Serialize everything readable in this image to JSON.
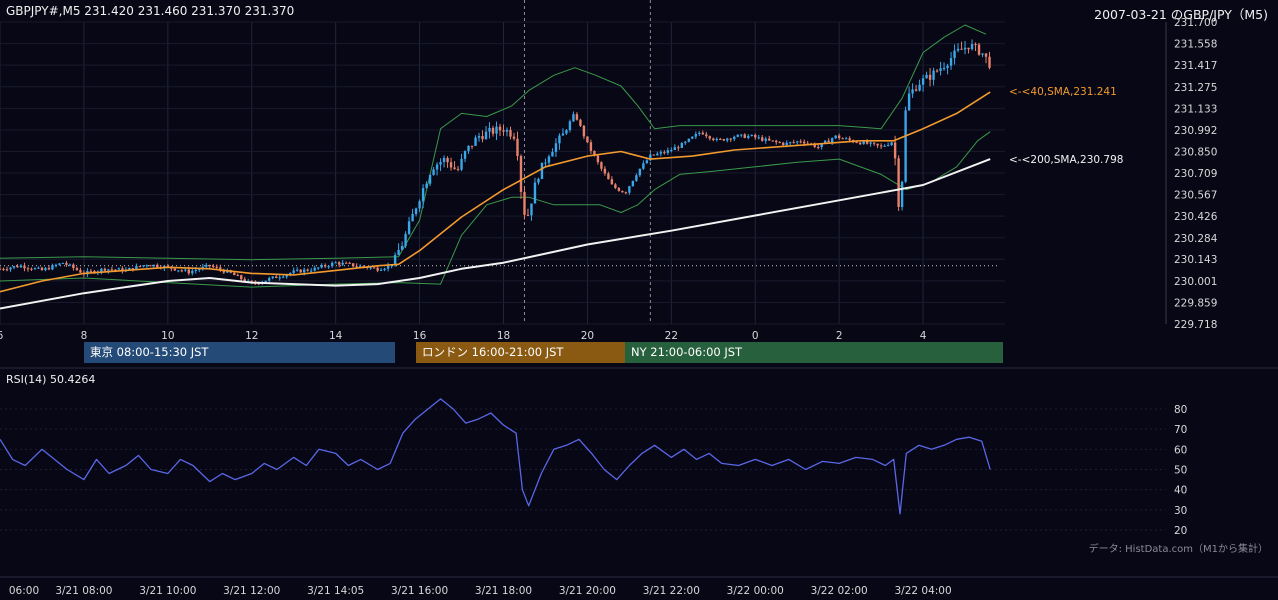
{
  "header": {
    "info": "GBPJPY#,M5 231.420 231.460 231.370 231.370",
    "title": "2007-03-21 のGBP/JPY（M5)"
  },
  "sessions": [
    {
      "label": "東京 08:00-15:30 JST",
      "color": "#244a78"
    },
    {
      "label": "ロンドン 16:00-21:00 JST",
      "color": "#8a5a12"
    },
    {
      "label": "NY 21:00-06:00 JST",
      "color": "#27603c"
    }
  ],
  "sma_labels": {
    "sma40": "<-<40,SMA,231.241",
    "sma200": "<-<200,SMA,230.798"
  },
  "rsi_label": "RSI(14) 50.4264",
  "source_note": "データ: HistData.com（M1から集計）",
  "colors": {
    "background": "#070716",
    "up": "#3aa7e8",
    "down": "#e8826a",
    "sma40": "#f39a2e",
    "sma200": "#f2f2f2",
    "bollinger": "#3b9a4a",
    "rsi": "#5a67e6"
  },
  "chart_data": [
    {
      "type": "candlestick",
      "title": "GBP/JPY M5",
      "ylim": [
        229.718,
        231.7
      ],
      "y_ticks": [
        "231.700",
        "231.558",
        "231.417",
        "231.275",
        "231.133",
        "230.992",
        "230.850",
        "230.709",
        "230.567",
        "230.426",
        "230.284",
        "230.143",
        "230.001",
        "229.859",
        "229.718"
      ],
      "x_ticks": [
        "6",
        "8",
        "10",
        "12",
        "14",
        "16",
        "18",
        "20",
        "22",
        "0",
        "2",
        "4"
      ],
      "series": [
        {
          "name": "40,SMA",
          "last": 231.241
        },
        {
          "name": "200,SMA",
          "last": 230.798
        }
      ],
      "price_path": [
        [
          6.0,
          230.08
        ],
        [
          6.5,
          230.1
        ],
        [
          7.0,
          230.07
        ],
        [
          7.5,
          230.12
        ],
        [
          8.0,
          230.05
        ],
        [
          8.5,
          230.08
        ],
        [
          9.0,
          230.07
        ],
        [
          9.5,
          230.11
        ],
        [
          10.0,
          230.09
        ],
        [
          10.5,
          230.06
        ],
        [
          11.0,
          230.1
        ],
        [
          11.5,
          230.05
        ],
        [
          12.0,
          229.98
        ],
        [
          12.5,
          230.02
        ],
        [
          13.0,
          230.06
        ],
        [
          13.5,
          230.08
        ],
        [
          14.0,
          230.12
        ],
        [
          14.5,
          230.1
        ],
        [
          15.0,
          230.08
        ],
        [
          15.3,
          230.1
        ],
        [
          15.6,
          230.25
        ],
        [
          15.9,
          230.48
        ],
        [
          16.1,
          230.62
        ],
        [
          16.3,
          230.75
        ],
        [
          16.6,
          230.8
        ],
        [
          16.9,
          230.72
        ],
        [
          17.1,
          230.85
        ],
        [
          17.4,
          230.95
        ],
        [
          17.7,
          230.98
        ],
        [
          18.0,
          231.0
        ],
        [
          18.3,
          230.95
        ],
        [
          18.45,
          230.5
        ],
        [
          18.55,
          230.4
        ],
        [
          18.8,
          230.68
        ],
        [
          19.1,
          230.85
        ],
        [
          19.4,
          230.95
        ],
        [
          19.7,
          231.1
        ],
        [
          20.0,
          230.9
        ],
        [
          20.3,
          230.75
        ],
        [
          20.6,
          230.62
        ],
        [
          20.9,
          230.58
        ],
        [
          21.2,
          230.72
        ],
        [
          21.5,
          230.82
        ],
        [
          21.9,
          230.85
        ],
        [
          22.3,
          230.9
        ],
        [
          22.7,
          230.98
        ],
        [
          23.1,
          230.92
        ],
        [
          23.5,
          230.95
        ],
        [
          23.9,
          230.95
        ],
        [
          24.3,
          230.92
        ],
        [
          24.7,
          230.9
        ],
        [
          25.1,
          230.92
        ],
        [
          25.5,
          230.88
        ],
        [
          25.9,
          230.95
        ],
        [
          26.3,
          230.92
        ],
        [
          26.7,
          230.9
        ],
        [
          27.0,
          230.88
        ],
        [
          27.3,
          230.92
        ],
        [
          27.45,
          230.4
        ],
        [
          27.6,
          231.2
        ],
        [
          27.9,
          231.3
        ],
        [
          28.2,
          231.35
        ],
        [
          28.5,
          231.42
        ],
        [
          28.8,
          231.5
        ],
        [
          29.1,
          231.55
        ],
        [
          29.4,
          231.5
        ],
        [
          29.6,
          231.42
        ]
      ],
      "sma40_path": [
        [
          6.0,
          229.93
        ],
        [
          7.0,
          230.0
        ],
        [
          8.0,
          230.05
        ],
        [
          9.0,
          230.07
        ],
        [
          10.0,
          230.09
        ],
        [
          11.0,
          230.08
        ],
        [
          12.0,
          230.05
        ],
        [
          13.0,
          230.04
        ],
        [
          14.0,
          230.07
        ],
        [
          15.0,
          230.1
        ],
        [
          15.5,
          230.11
        ],
        [
          16.0,
          230.2
        ],
        [
          17.0,
          230.42
        ],
        [
          18.0,
          230.6
        ],
        [
          19.0,
          230.75
        ],
        [
          20.0,
          230.82
        ],
        [
          20.8,
          230.85
        ],
        [
          21.5,
          230.8
        ],
        [
          22.5,
          230.82
        ],
        [
          23.5,
          230.86
        ],
        [
          24.5,
          230.88
        ],
        [
          25.5,
          230.9
        ],
        [
          26.5,
          230.92
        ],
        [
          27.3,
          230.92
        ],
        [
          28.0,
          231.0
        ],
        [
          28.8,
          231.1
        ],
        [
          29.6,
          231.24
        ]
      ],
      "sma200_path": [
        [
          6.0,
          229.82
        ],
        [
          8.0,
          229.92
        ],
        [
          10.0,
          230.0
        ],
        [
          11.0,
          230.02
        ],
        [
          12.0,
          229.99
        ],
        [
          13.0,
          229.98
        ],
        [
          14.0,
          229.97
        ],
        [
          15.0,
          229.98
        ],
        [
          16.0,
          230.02
        ],
        [
          17.0,
          230.08
        ],
        [
          18.0,
          230.12
        ],
        [
          19.0,
          230.18
        ],
        [
          20.0,
          230.24
        ],
        [
          22.0,
          230.33
        ],
        [
          24.0,
          230.43
        ],
        [
          26.0,
          230.53
        ],
        [
          27.0,
          230.58
        ],
        [
          28.0,
          230.63
        ],
        [
          29.6,
          230.8
        ]
      ],
      "bb_upper_path": [
        [
          6.0,
          230.15
        ],
        [
          8.0,
          230.16
        ],
        [
          10.0,
          230.15
        ],
        [
          12.0,
          230.14
        ],
        [
          14.0,
          230.15
        ],
        [
          15.5,
          230.16
        ],
        [
          16.0,
          230.4
        ],
        [
          16.5,
          231.0
        ],
        [
          17.0,
          231.1
        ],
        [
          17.6,
          231.08
        ],
        [
          18.2,
          231.15
        ],
        [
          18.6,
          231.25
        ],
        [
          19.2,
          231.35
        ],
        [
          19.7,
          231.4
        ],
        [
          20.2,
          231.35
        ],
        [
          20.8,
          231.28
        ],
        [
          21.2,
          231.15
        ],
        [
          21.6,
          231.0
        ],
        [
          22.2,
          231.02
        ],
        [
          23.0,
          231.02
        ],
        [
          24.0,
          231.02
        ],
        [
          25.0,
          231.02
        ],
        [
          26.0,
          231.02
        ],
        [
          27.0,
          231.0
        ],
        [
          27.5,
          231.2
        ],
        [
          28.0,
          231.5
        ],
        [
          28.5,
          231.6
        ],
        [
          29.0,
          231.68
        ],
        [
          29.5,
          231.62
        ]
      ],
      "bb_lower_path": [
        [
          6.0,
          230.0
        ],
        [
          8.0,
          230.02
        ],
        [
          10.0,
          229.99
        ],
        [
          12.0,
          229.96
        ],
        [
          14.0,
          229.98
        ],
        [
          15.5,
          229.99
        ],
        [
          16.5,
          229.98
        ],
        [
          17.0,
          230.3
        ],
        [
          17.6,
          230.5
        ],
        [
          18.2,
          230.55
        ],
        [
          18.6,
          230.55
        ],
        [
          19.2,
          230.5
        ],
        [
          19.7,
          230.5
        ],
        [
          20.3,
          230.5
        ],
        [
          20.8,
          230.45
        ],
        [
          21.2,
          230.5
        ],
        [
          21.6,
          230.6
        ],
        [
          22.2,
          230.7
        ],
        [
          23.0,
          230.72
        ],
        [
          24.0,
          230.75
        ],
        [
          25.0,
          230.78
        ],
        [
          26.0,
          230.8
        ],
        [
          27.0,
          230.7
        ],
        [
          27.6,
          230.6
        ],
        [
          28.2,
          230.65
        ],
        [
          28.8,
          230.75
        ],
        [
          29.3,
          230.92
        ],
        [
          29.6,
          230.98
        ]
      ],
      "dotted_level": 230.1
    },
    {
      "type": "line",
      "title": "RSI(14)",
      "ylim": [
        20,
        85
      ],
      "y_ticks": [
        "80",
        "70",
        "60",
        "50",
        "40",
        "30",
        "20"
      ],
      "x_ticks": [
        "06:00",
        "3/21 08:00",
        "3/21 10:00",
        "3/21 12:00",
        "3/21 14:05",
        "3/21 16:00",
        "3/21 18:00",
        "3/21 20:00",
        "3/21 22:00",
        "3/22 00:00",
        "3/22 02:00",
        "3/22 04:00"
      ],
      "series": [
        {
          "name": "RSI(14)",
          "last": 50.4264
        }
      ],
      "rsi_path": [
        [
          6.0,
          65
        ],
        [
          6.3,
          55
        ],
        [
          6.6,
          52
        ],
        [
          7.0,
          60
        ],
        [
          7.3,
          55
        ],
        [
          7.6,
          50
        ],
        [
          8.0,
          45
        ],
        [
          8.3,
          55
        ],
        [
          8.6,
          48
        ],
        [
          9.0,
          52
        ],
        [
          9.3,
          57
        ],
        [
          9.6,
          50
        ],
        [
          10.0,
          48
        ],
        [
          10.3,
          55
        ],
        [
          10.6,
          52
        ],
        [
          11.0,
          44
        ],
        [
          11.3,
          48
        ],
        [
          11.6,
          45
        ],
        [
          12.0,
          48
        ],
        [
          12.3,
          53
        ],
        [
          12.6,
          50
        ],
        [
          13.0,
          56
        ],
        [
          13.3,
          52
        ],
        [
          13.6,
          60
        ],
        [
          14.0,
          58
        ],
        [
          14.3,
          52
        ],
        [
          14.6,
          55
        ],
        [
          15.0,
          50
        ],
        [
          15.3,
          53
        ],
        [
          15.6,
          68
        ],
        [
          15.9,
          75
        ],
        [
          16.2,
          80
        ],
        [
          16.5,
          85
        ],
        [
          16.8,
          80
        ],
        [
          17.1,
          73
        ],
        [
          17.4,
          75
        ],
        [
          17.7,
          78
        ],
        [
          18.0,
          72
        ],
        [
          18.3,
          68
        ],
        [
          18.45,
          40
        ],
        [
          18.6,
          32
        ],
        [
          18.9,
          48
        ],
        [
          19.2,
          60
        ],
        [
          19.5,
          62
        ],
        [
          19.8,
          65
        ],
        [
          20.1,
          58
        ],
        [
          20.4,
          50
        ],
        [
          20.7,
          45
        ],
        [
          21.0,
          52
        ],
        [
          21.3,
          58
        ],
        [
          21.6,
          62
        ],
        [
          22.0,
          56
        ],
        [
          22.3,
          60
        ],
        [
          22.6,
          55
        ],
        [
          22.9,
          58
        ],
        [
          23.2,
          53
        ],
        [
          23.6,
          52
        ],
        [
          24.0,
          55
        ],
        [
          24.4,
          52
        ],
        [
          24.8,
          55
        ],
        [
          25.2,
          50
        ],
        [
          25.6,
          54
        ],
        [
          26.0,
          53
        ],
        [
          26.4,
          56
        ],
        [
          26.8,
          55
        ],
        [
          27.1,
          52
        ],
        [
          27.3,
          55
        ],
        [
          27.45,
          28
        ],
        [
          27.6,
          58
        ],
        [
          27.9,
          62
        ],
        [
          28.2,
          60
        ],
        [
          28.5,
          62
        ],
        [
          28.8,
          65
        ],
        [
          29.1,
          66
        ],
        [
          29.4,
          64
        ],
        [
          29.6,
          50
        ]
      ]
    }
  ]
}
